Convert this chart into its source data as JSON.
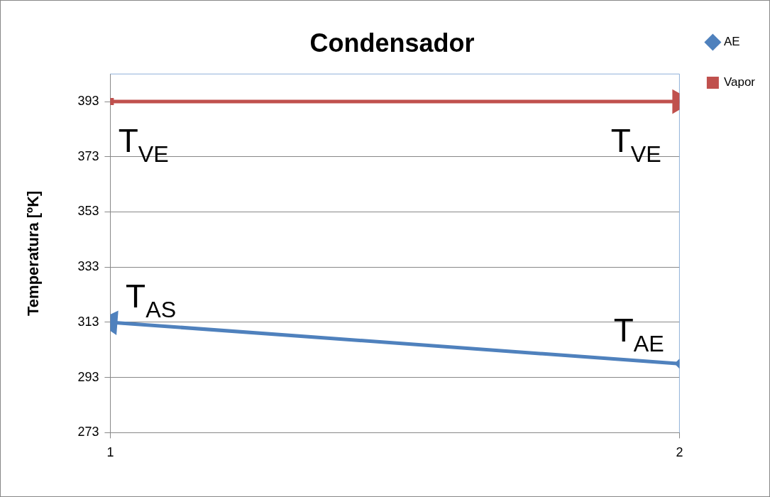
{
  "chart_data": {
    "type": "line",
    "title": "Condensador",
    "ylabel": "Temperatura [ºK]",
    "x": [
      1,
      2
    ],
    "xlim": [
      1,
      2
    ],
    "xticks": [
      1,
      2
    ],
    "ylim": [
      273,
      403
    ],
    "yticks": [
      273,
      293,
      313,
      333,
      353,
      373,
      393
    ],
    "series": [
      {
        "name": "AE",
        "color": "#4f81bd",
        "x": [
          2,
          1
        ],
        "values": [
          298,
          313
        ],
        "marker": "diamond"
      },
      {
        "name": "Vapor",
        "color": "#c0504d",
        "values": [
          393,
          393
        ],
        "marker": "square"
      }
    ],
    "annotations": [
      "T$_{VE}$",
      "T$_{VE}$",
      "T$_{AS}$",
      "T$_{AE}$"
    ],
    "grid": "y",
    "legend": "top right",
    "line_style": "solid"
  }
}
